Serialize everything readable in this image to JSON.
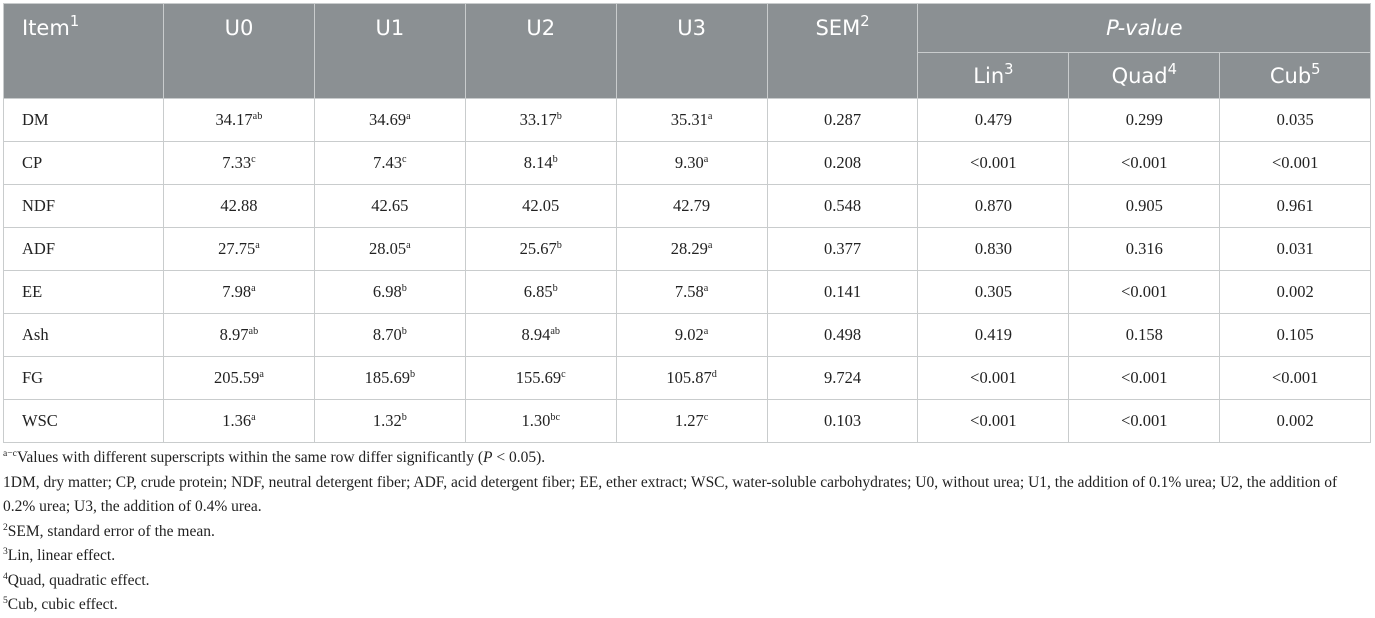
{
  "header": {
    "item": {
      "text": "Item",
      "sup": "1"
    },
    "groups": [
      {
        "text": "U0"
      },
      {
        "text": "U1"
      },
      {
        "text": "U2"
      },
      {
        "text": "U3"
      }
    ],
    "sem": {
      "text": "SEM",
      "sup": "2"
    },
    "pvalue": "P-value",
    "effects": [
      {
        "text": "Lin",
        "sup": "3"
      },
      {
        "text": "Quad",
        "sup": "4"
      },
      {
        "text": "Cub",
        "sup": "5"
      }
    ]
  },
  "table": {
    "rows": [
      {
        "label": "DM",
        "cells": [
          {
            "text": "34.17",
            "sup": "ab"
          },
          {
            "text": "34.69",
            "sup": "a"
          },
          {
            "text": "33.17",
            "sup": "b"
          },
          {
            "text": "35.31",
            "sup": "a"
          },
          {
            "text": "0.287"
          },
          {
            "text": "0.479"
          },
          {
            "text": "0.299"
          },
          {
            "text": "0.035"
          }
        ]
      },
      {
        "label": "CP",
        "cells": [
          {
            "text": "7.33",
            "sup": "c"
          },
          {
            "text": "7.43",
            "sup": "c"
          },
          {
            "text": "8.14",
            "sup": "b"
          },
          {
            "text": "9.30",
            "sup": "a"
          },
          {
            "text": "0.208"
          },
          {
            "text": "<0.001"
          },
          {
            "text": "<0.001"
          },
          {
            "text": "<0.001"
          }
        ]
      },
      {
        "label": "NDF",
        "cells": [
          {
            "text": "42.88"
          },
          {
            "text": "42.65"
          },
          {
            "text": "42.05"
          },
          {
            "text": "42.79"
          },
          {
            "text": "0.548"
          },
          {
            "text": "0.870"
          },
          {
            "text": "0.905"
          },
          {
            "text": "0.961"
          }
        ]
      },
      {
        "label": "ADF",
        "cells": [
          {
            "text": "27.75",
            "sup": "a"
          },
          {
            "text": "28.05",
            "sup": "a"
          },
          {
            "text": "25.67",
            "sup": "b"
          },
          {
            "text": "28.29",
            "sup": "a"
          },
          {
            "text": "0.377"
          },
          {
            "text": "0.830"
          },
          {
            "text": "0.316"
          },
          {
            "text": "0.031"
          }
        ]
      },
      {
        "label": "EE",
        "cells": [
          {
            "text": "7.98",
            "sup": "a"
          },
          {
            "text": "6.98",
            "sup": "b"
          },
          {
            "text": "6.85",
            "sup": "b"
          },
          {
            "text": "7.58",
            "sup": "a"
          },
          {
            "text": "0.141"
          },
          {
            "text": "0.305"
          },
          {
            "text": "<0.001"
          },
          {
            "text": "0.002"
          }
        ]
      },
      {
        "label": "Ash",
        "cells": [
          {
            "text": "8.97",
            "sup": "ab"
          },
          {
            "text": "8.70",
            "sup": "b"
          },
          {
            "text": "8.94",
            "sup": "ab"
          },
          {
            "text": "9.02",
            "sup": "a"
          },
          {
            "text": "0.498"
          },
          {
            "text": "0.419"
          },
          {
            "text": "0.158"
          },
          {
            "text": "0.105"
          }
        ]
      },
      {
        "label": "FG",
        "cells": [
          {
            "text": "205.59",
            "sup": "a"
          },
          {
            "text": "185.69",
            "sup": "b"
          },
          {
            "text": "155.69",
            "sup": "c"
          },
          {
            "text": "105.87",
            "sup": "d"
          },
          {
            "text": "9.724"
          },
          {
            "text": "<0.001"
          },
          {
            "text": "<0.001"
          },
          {
            "text": "<0.001"
          }
        ]
      },
      {
        "label": "WSC",
        "cells": [
          {
            "text": "1.36",
            "sup": "a"
          },
          {
            "text": "1.32",
            "sup": "b"
          },
          {
            "text": "1.30",
            "sup": "bc"
          },
          {
            "text": "1.27",
            "sup": "c"
          },
          {
            "text": "0.103"
          },
          {
            "text": "<0.001"
          },
          {
            "text": "<0.001"
          },
          {
            "text": "0.002"
          }
        ]
      }
    ]
  },
  "notes": [
    {
      "sup": "a−c",
      "before": "Values with different superscripts within the same row differ significantly (",
      "italic": "P",
      "after": " < 0.05)."
    },
    {
      "text": "1DM, dry matter; CP, crude protein; NDF, neutral detergent fiber; ADF, acid detergent fiber; EE, ether extract; WSC, water-soluble carbohydrates; U0, without urea; U1, the addition of 0.1% urea; U2, the addition of 0.2% urea; U3, the addition of 0.4% urea."
    },
    {
      "sup": "2",
      "text": "SEM, standard error of the mean."
    },
    {
      "sup": "3",
      "text": "Lin, linear effect."
    },
    {
      "sup": "4",
      "text": "Quad, quadratic effect."
    },
    {
      "sup": "5",
      "text": "Cub, cubic effect."
    }
  ]
}
